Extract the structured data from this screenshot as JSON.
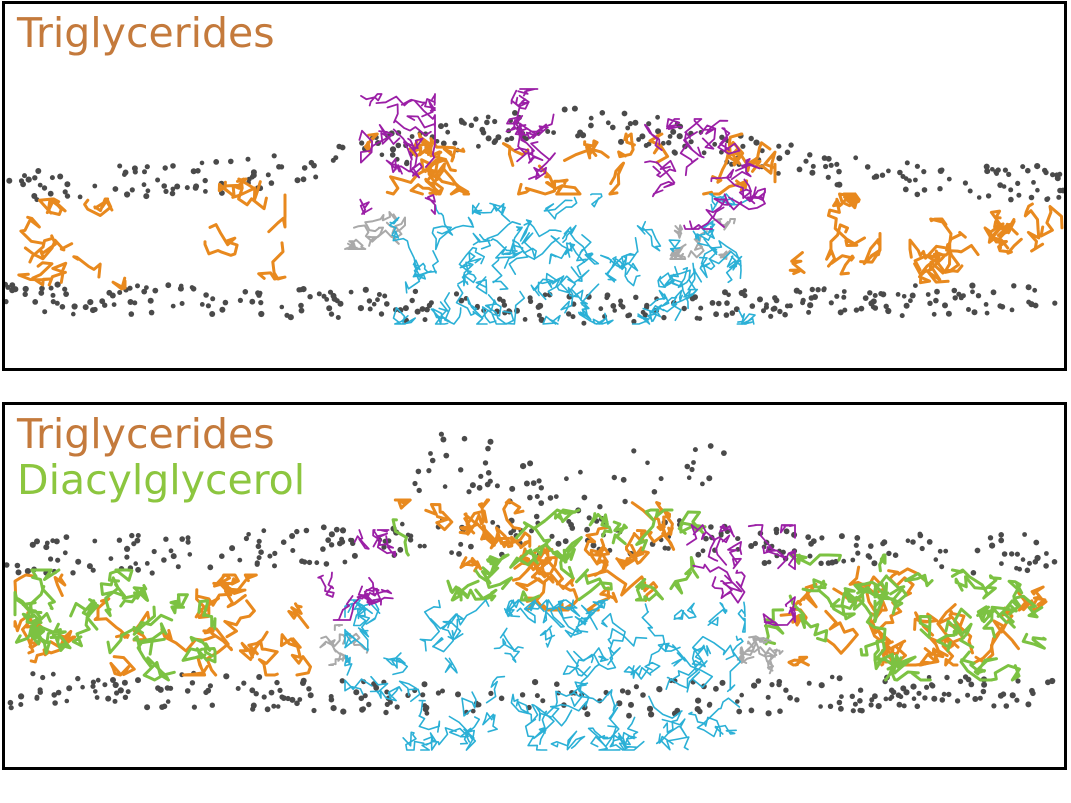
{
  "panels": [
    {
      "legend": [
        {
          "label": "Triglycerides",
          "color": "#c47a3c"
        }
      ],
      "layers": [
        "headgroup-spheres",
        "triglyceride-chains",
        "protein-magenta",
        "protein-cyan",
        "protein-gray"
      ]
    },
    {
      "legend": [
        {
          "label": "Triglycerides",
          "color": "#c47a3c"
        },
        {
          "label": "Diacylglycerol",
          "color": "#8cc63f"
        }
      ],
      "layers": [
        "headgroup-spheres",
        "triglyceride-chains",
        "diacylglycerol-chains",
        "protein-magenta",
        "protein-cyan",
        "protein-gray"
      ]
    }
  ],
  "colors": {
    "sphere": "#4a4a4a",
    "triglyceride": "#e8891e",
    "diacylglycerol": "#7cc242",
    "magenta": "#9b1fa6",
    "cyan": "#2bb0d6",
    "gray": "#a9a9a9"
  }
}
